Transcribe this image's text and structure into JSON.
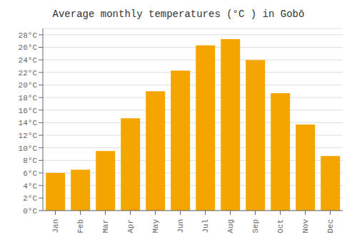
{
  "chart_data": {
    "type": "bar",
    "title": "Average monthly temperatures (°C ) in Gobō",
    "categories": [
      "Jan",
      "Feb",
      "Mar",
      "Apr",
      "May",
      "Jun",
      "Jul",
      "Aug",
      "Sep",
      "Oct",
      "Nov",
      "Dec"
    ],
    "values": [
      6.0,
      6.5,
      9.5,
      14.7,
      19.0,
      22.3,
      26.3,
      27.3,
      24.0,
      18.7,
      13.7,
      8.7
    ],
    "color": "#F5A500",
    "ylim": [
      0,
      29
    ],
    "yticks": [
      {
        "value": 0,
        "label": "0°C"
      },
      {
        "value": 2,
        "label": "2°C"
      },
      {
        "value": 4,
        "label": "4°C"
      },
      {
        "value": 6,
        "label": "6°C"
      },
      {
        "value": 8,
        "label": "8°C"
      },
      {
        "value": 10,
        "label": "10°C"
      },
      {
        "value": 12,
        "label": "12°C"
      },
      {
        "value": 14,
        "label": "14°C"
      },
      {
        "value": 16,
        "label": "16°C"
      },
      {
        "value": 18,
        "label": "18°C"
      },
      {
        "value": 20,
        "label": "20°C"
      },
      {
        "value": 22,
        "label": "22°C"
      },
      {
        "value": 24,
        "label": "24°C"
      },
      {
        "value": 26,
        "label": "26°C"
      },
      {
        "value": 28,
        "label": "28°C"
      }
    ],
    "grid": true
  }
}
